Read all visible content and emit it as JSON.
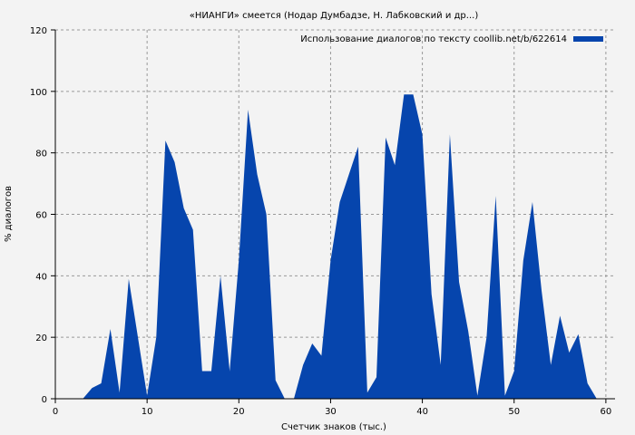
{
  "chart_data": {
    "type": "area",
    "title": "«НИАНГИ» смеется (Нодар Думбадзе, Н. Лабковский и др...)",
    "xlabel": "Счетчик знаков (тыс.)",
    "ylabel": "% диалогов",
    "xlim": [
      0,
      61
    ],
    "ylim": [
      0,
      120
    ],
    "xticks": [
      0,
      10,
      20,
      30,
      40,
      50,
      60
    ],
    "yticks": [
      0,
      20,
      40,
      60,
      80,
      100,
      120
    ],
    "grid": true,
    "legend_placement": "top-right",
    "color": "#0645ad",
    "series": [
      {
        "name": "Использование диалогов по тексту coollib.net/b/622614",
        "x": [
          3,
          4,
          5,
          6,
          7,
          8,
          9,
          10,
          11,
          12,
          13,
          14,
          15,
          16,
          17,
          18,
          19,
          20,
          21,
          22,
          23,
          24,
          25,
          26,
          27,
          28,
          29,
          30,
          31,
          32,
          33,
          34,
          35,
          36,
          37,
          38,
          39,
          40,
          41,
          42,
          43,
          44,
          45,
          46,
          47,
          48,
          49,
          50,
          51,
          52,
          53,
          54,
          55,
          56,
          57,
          58,
          59
        ],
        "values": [
          0,
          3.5,
          5,
          22.7,
          2,
          39,
          20,
          1,
          20,
          84,
          77,
          62,
          55,
          9,
          9,
          40,
          9,
          45,
          94,
          73,
          60,
          6,
          0,
          0,
          11,
          18,
          14,
          45,
          64,
          73,
          82,
          2,
          7,
          85,
          76,
          99,
          99,
          86,
          34,
          11,
          86,
          38,
          22,
          1,
          20,
          66,
          1,
          9,
          45,
          64,
          35,
          11,
          27,
          15,
          21,
          5,
          0
        ]
      }
    ]
  }
}
